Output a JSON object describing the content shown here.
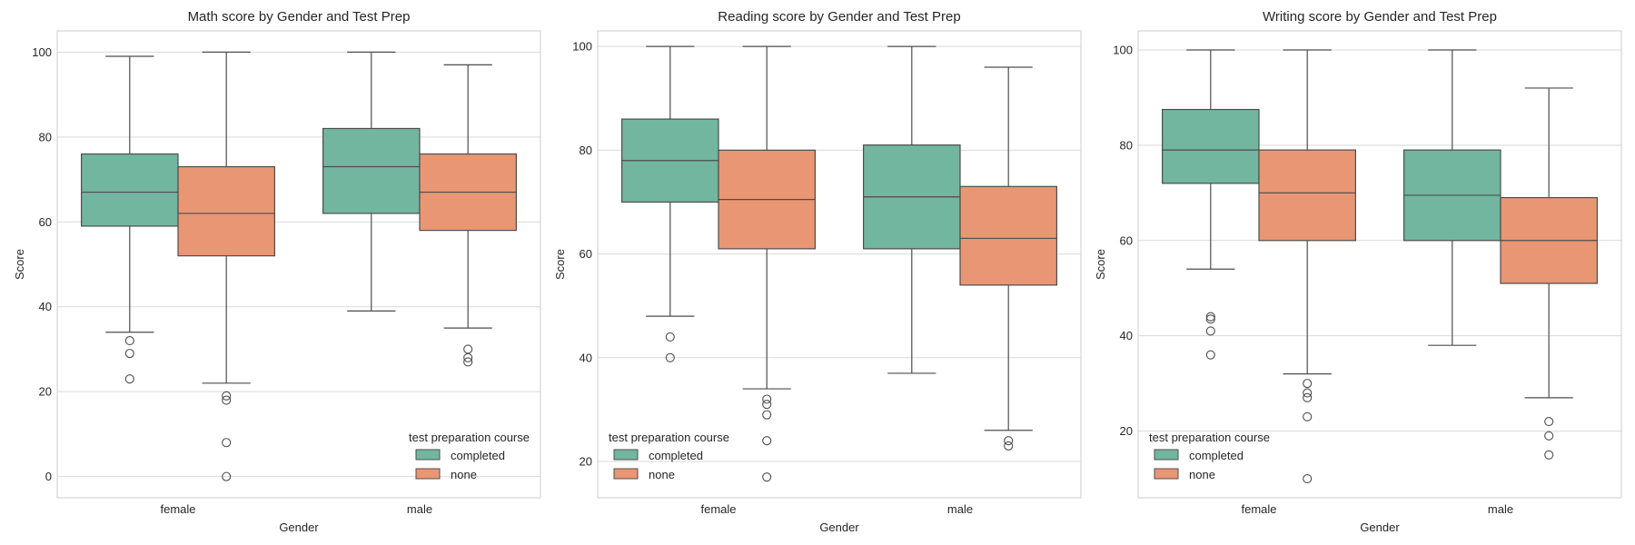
{
  "chart_data": [
    {
      "type": "box",
      "title": "Math score by Gender and Test Prep",
      "xlabel": "Gender",
      "ylabel": "Score",
      "ylim": [
        -5,
        105
      ],
      "yticks": [
        0,
        20,
        40,
        60,
        80,
        100
      ],
      "categories": [
        "female",
        "male"
      ],
      "grid": true,
      "legend": {
        "title": "test preparation course",
        "position": "lower-right",
        "entries": [
          "completed",
          "none"
        ]
      },
      "series": [
        {
          "name": "completed",
          "color": "#72b6a0",
          "boxes": [
            {
              "category": "female",
              "whisker_low": 34,
              "q1": 59,
              "median": 67,
              "q3": 76,
              "whisker_high": 99,
              "outliers": [
                32,
                29,
                23
              ]
            },
            {
              "category": "male",
              "whisker_low": 39,
              "q1": 62,
              "median": 73,
              "q3": 82,
              "whisker_high": 100,
              "outliers": []
            }
          ]
        },
        {
          "name": "none",
          "color": "#e99674",
          "boxes": [
            {
              "category": "female",
              "whisker_low": 22,
              "q1": 52,
              "median": 62,
              "q3": 73,
              "whisker_high": 100,
              "outliers": [
                19,
                18,
                8,
                0
              ]
            },
            {
              "category": "male",
              "whisker_low": 35,
              "q1": 58,
              "median": 67,
              "q3": 76,
              "whisker_high": 97,
              "outliers": [
                30,
                28,
                27
              ]
            }
          ]
        }
      ]
    },
    {
      "type": "box",
      "title": "Reading score by Gender and Test Prep",
      "xlabel": "Gender",
      "ylabel": "Score",
      "ylim": [
        13,
        103
      ],
      "yticks": [
        20,
        40,
        60,
        80,
        100
      ],
      "categories": [
        "female",
        "male"
      ],
      "grid": true,
      "legend": {
        "title": "test preparation course",
        "position": "lower-left",
        "entries": [
          "completed",
          "none"
        ]
      },
      "series": [
        {
          "name": "completed",
          "color": "#72b6a0",
          "boxes": [
            {
              "category": "female",
              "whisker_low": 48,
              "q1": 70,
              "median": 78,
              "q3": 86,
              "whisker_high": 100,
              "outliers": [
                44,
                40
              ]
            },
            {
              "category": "male",
              "whisker_low": 37,
              "q1": 61,
              "median": 71,
              "q3": 81,
              "whisker_high": 100,
              "outliers": []
            }
          ]
        },
        {
          "name": "none",
          "color": "#e99674",
          "boxes": [
            {
              "category": "female",
              "whisker_low": 34,
              "q1": 61,
              "median": 70.5,
              "q3": 80,
              "whisker_high": 100,
              "outliers": [
                32,
                31,
                29,
                24,
                17
              ]
            },
            {
              "category": "male",
              "whisker_low": 26,
              "q1": 54,
              "median": 63,
              "q3": 73,
              "whisker_high": 96,
              "outliers": [
                24,
                23
              ]
            }
          ]
        }
      ]
    },
    {
      "type": "box",
      "title": "Writing score by Gender and Test Prep",
      "xlabel": "Gender",
      "ylabel": "Score",
      "ylim": [
        6,
        104
      ],
      "yticks": [
        20,
        40,
        60,
        80,
        100
      ],
      "categories": [
        "female",
        "male"
      ],
      "grid": true,
      "legend": {
        "title": "test preparation course",
        "position": "lower-left",
        "entries": [
          "completed",
          "none"
        ]
      },
      "series": [
        {
          "name": "completed",
          "color": "#72b6a0",
          "boxes": [
            {
              "category": "female",
              "whisker_low": 54,
              "q1": 72,
              "median": 79,
              "q3": 87.5,
              "whisker_high": 100,
              "outliers": [
                44,
                43.5,
                41,
                36
              ]
            },
            {
              "category": "male",
              "whisker_low": 38,
              "q1": 60,
              "median": 69.5,
              "q3": 79,
              "whisker_high": 100,
              "outliers": []
            }
          ]
        },
        {
          "name": "none",
          "color": "#e99674",
          "boxes": [
            {
              "category": "female",
              "whisker_low": 32,
              "q1": 60,
              "median": 70,
              "q3": 79,
              "whisker_high": 100,
              "outliers": [
                30,
                28,
                27,
                23,
                10
              ]
            },
            {
              "category": "male",
              "whisker_low": 27,
              "q1": 51,
              "median": 60,
              "q3": 69,
              "whisker_high": 92,
              "outliers": [
                22,
                19,
                15
              ]
            }
          ]
        }
      ]
    }
  ]
}
